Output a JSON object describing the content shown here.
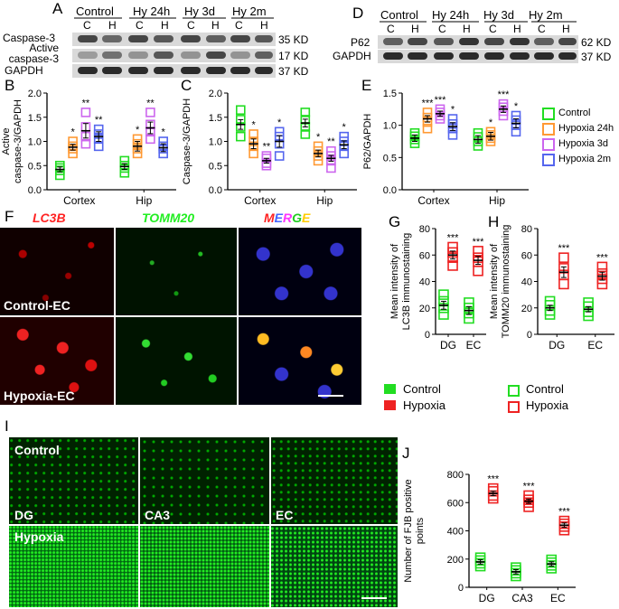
{
  "panels": {
    "A": "A",
    "B": "B",
    "C": "C",
    "D": "D",
    "E": "E",
    "F": "F",
    "G": "G",
    "H": "H",
    "I": "I",
    "J": "J"
  },
  "blotA": {
    "groups": [
      "Control",
      "Hy 24h",
      "Hy 3d",
      "Hy 2m"
    ],
    "lanes": [
      "C",
      "H",
      "C",
      "H",
      "C",
      "H",
      "C",
      "H"
    ],
    "rows": [
      {
        "name": "Caspase-3",
        "size": "35 KD"
      },
      {
        "name": "Active\ncaspase-3",
        "size": "17 KD"
      },
      {
        "name": "GAPDH",
        "size": "37 KD"
      }
    ]
  },
  "blotD": {
    "groups": [
      "Control",
      "Hy 24h",
      "Hy 3d",
      "Hy 2m"
    ],
    "lanes": [
      "C",
      "H",
      "C",
      "H",
      "C",
      "H",
      "C",
      "H"
    ],
    "rows": [
      {
        "name": "P62",
        "size": "62 KD"
      },
      {
        "name": "GAPDH",
        "size": "37 KD"
      }
    ]
  },
  "legend_top": {
    "items": [
      {
        "label": "Control",
        "color": "#22dd22"
      },
      {
        "label": "Hypoxia 24h",
        "color": "#ff9933"
      },
      {
        "label": "Hypoxia 3d",
        "color": "#cc66ee"
      },
      {
        "label": "Hypoxia 2m",
        "color": "#5566ee"
      }
    ]
  },
  "legend_G": {
    "items": [
      {
        "label": "Control",
        "color": "#22dd22"
      },
      {
        "label": "Hypoxia",
        "color": "#ee2222"
      }
    ]
  },
  "legend_H": {
    "items": [
      {
        "label": "Control",
        "color": "#22dd22"
      },
      {
        "label": "Hypoxia",
        "color": "#ee2222"
      }
    ]
  },
  "micF": {
    "cols": [
      {
        "text": "LC3B",
        "color": "#ff2222"
      },
      {
        "text": "TOMM20",
        "color": "#22ee22"
      },
      {
        "text": "MERGE",
        "color": "multi"
      }
    ],
    "rows": [
      "Control-EC",
      "Hypoxia-EC"
    ]
  },
  "micI": {
    "row_labels": [
      "Control",
      "Hypoxia"
    ],
    "col_labels": [
      "DG",
      "CA3",
      "EC"
    ]
  },
  "chart_data": [
    {
      "id": "B",
      "type": "scatter",
      "ylabel": "Active\ncaspase-3/GAPDH",
      "categories": [
        "Cortex",
        "Hip"
      ],
      "ylim": [
        0,
        2
      ],
      "yticks": [
        "0.0",
        "0.5",
        "1.0",
        "1.5",
        "2.0"
      ],
      "series": [
        {
          "name": "Control",
          "color": "#22dd22",
          "mean": [
            0.42,
            0.48
          ],
          "sem": [
            0.05,
            0.06
          ],
          "points": [
            [
              0.3,
              0.4,
              0.45,
              0.5
            ],
            [
              0.35,
              0.45,
              0.5,
              0.6
            ]
          ]
        },
        {
          "name": "Hypoxia 24h",
          "color": "#ff9933",
          "mean": [
            0.88,
            0.9
          ],
          "sem": [
            0.06,
            0.1
          ],
          "points": [
            [
              0.75,
              0.85,
              0.9,
              1.0
            ],
            [
              0.75,
              0.85,
              0.95,
              1.05
            ]
          ],
          "sig": [
            "*",
            "*"
          ]
        },
        {
          "name": "Hypoxia 3d",
          "color": "#cc66ee",
          "mean": [
            1.22,
            1.28
          ],
          "sem": [
            0.15,
            0.12
          ],
          "points": [
            [
              0.95,
              1.1,
              1.3,
              1.6
            ],
            [
              1.05,
              1.2,
              1.35,
              1.6
            ]
          ],
          "sig": [
            "**",
            "**"
          ]
        },
        {
          "name": "Hypoxia 2m",
          "color": "#5566ee",
          "mean": [
            1.1,
            0.87
          ],
          "sem": [
            0.1,
            0.08
          ],
          "points": [
            [
              0.9,
              1.05,
              1.15,
              1.25
            ],
            [
              0.75,
              0.85,
              0.9,
              1.0
            ]
          ],
          "sig": [
            "**",
            "*"
          ]
        }
      ]
    },
    {
      "id": "C",
      "type": "scatter",
      "ylabel": "Caspase-3/GAPDH",
      "categories": [
        "Cortex",
        "Hip"
      ],
      "ylim": [
        0,
        2
      ],
      "yticks": [
        "0.0",
        "0.5",
        "1.0",
        "1.5",
        "2.0"
      ],
      "series": [
        {
          "name": "Control",
          "color": "#22dd22",
          "mean": [
            1.35,
            1.38
          ],
          "sem": [
            0.1,
            0.08
          ],
          "points": [
            [
              1.1,
              1.3,
              1.45,
              1.65
            ],
            [
              1.15,
              1.3,
              1.45,
              1.6
            ]
          ]
        },
        {
          "name": "Hypoxia 24h",
          "color": "#ff9933",
          "mean": [
            0.95,
            0.75
          ],
          "sem": [
            0.1,
            0.07
          ],
          "points": [
            [
              0.75,
              0.9,
              1.0,
              1.15
            ],
            [
              0.6,
              0.7,
              0.8,
              0.9
            ]
          ],
          "sig": [
            "*",
            "*"
          ]
        },
        {
          "name": "Hypoxia 3d",
          "color": "#cc66ee",
          "mean": [
            0.6,
            0.65
          ],
          "sem": [
            0.05,
            0.06
          ],
          "points": [
            [
              0.5,
              0.55,
              0.65,
              0.7
            ],
            [
              0.45,
              0.6,
              0.7,
              0.8
            ]
          ],
          "sig": [
            "**",
            "**"
          ]
        },
        {
          "name": "Hypoxia 2m",
          "color": "#5566ee",
          "mean": [
            1.0,
            0.93
          ],
          "sem": [
            0.12,
            0.08
          ],
          "points": [
            [
              0.7,
              0.95,
              1.1,
              1.2
            ],
            [
              0.75,
              0.9,
              1.0,
              1.1
            ]
          ],
          "sig": [
            "*",
            "*"
          ]
        }
      ]
    },
    {
      "id": "E",
      "type": "scatter",
      "ylabel": "P62/GAPDH",
      "categories": [
        "Cortex",
        "Hip"
      ],
      "ylim": [
        0,
        1.5
      ],
      "yticks": [
        "0.0",
        "0.5",
        "1.0",
        "1.5"
      ],
      "series": [
        {
          "name": "Control",
          "color": "#22dd22",
          "mean": [
            0.8,
            0.78
          ],
          "sem": [
            0.05,
            0.06
          ],
          "points": [
            [
              0.72,
              0.78,
              0.83,
              0.88
            ],
            [
              0.68,
              0.75,
              0.82,
              0.88
            ]
          ]
        },
        {
          "name": "Hypoxia 24h",
          "color": "#ff9933",
          "mean": [
            1.1,
            0.83
          ],
          "sem": [
            0.05,
            0.06
          ],
          "points": [
            [
              0.95,
              1.05,
              1.12,
              1.2
            ],
            [
              0.75,
              0.8,
              0.85,
              0.9
            ]
          ],
          "sig": [
            "***",
            "*"
          ]
        },
        {
          "name": "Hypoxia 3d",
          "color": "#cc66ee",
          "mean": [
            1.18,
            1.25
          ],
          "sem": [
            0.04,
            0.05
          ],
          "points": [
            [
              1.1,
              1.15,
              1.2,
              1.25
            ],
            [
              1.15,
              1.22,
              1.28,
              1.33
            ]
          ],
          "sig": [
            "***",
            "***"
          ]
        },
        {
          "name": "Hypoxia 2m",
          "color": "#5566ee",
          "mean": [
            0.98,
            1.03
          ],
          "sem": [
            0.06,
            0.07
          ],
          "points": [
            [
              0.85,
              0.95,
              1.02,
              1.1
            ],
            [
              0.9,
              1.0,
              1.08,
              1.15
            ]
          ],
          "sig": [
            "*",
            "*"
          ]
        }
      ]
    },
    {
      "id": "G",
      "type": "scatter",
      "ylabel": "Mean intensity of\nLC3B immunostaining",
      "categories": [
        "DG",
        "EC"
      ],
      "ylim": [
        0,
        80
      ],
      "yticks": [
        "0",
        "20",
        "40",
        "60",
        "80"
      ],
      "series": [
        {
          "name": "Control",
          "color": "#22dd22",
          "mean": [
            22,
            18
          ],
          "sem": [
            3,
            3
          ],
          "points": [
            [
              15,
              20,
              25,
              30
            ],
            [
              12,
              16,
              20,
              24
            ]
          ]
        },
        {
          "name": "Hypoxia",
          "color": "#ee2222",
          "mean": [
            60,
            56
          ],
          "sem": [
            3,
            3
          ],
          "points": [
            [
              52,
              58,
              62,
              66
            ],
            [
              48,
              55,
              58,
              63
            ]
          ],
          "sig": [
            "***",
            "***"
          ]
        }
      ]
    },
    {
      "id": "H",
      "type": "scatter",
      "ylabel": "Mean intensity of\nTOMM20 immunostaining",
      "categories": [
        "DG",
        "EC"
      ],
      "ylim": [
        0,
        80
      ],
      "yticks": [
        "0",
        "20",
        "40",
        "60",
        "80"
      ],
      "series": [
        {
          "name": "Control",
          "color": "#22dd22",
          "mean": [
            20,
            19
          ],
          "sem": [
            2,
            2
          ],
          "points": [
            [
              15,
              18,
              22,
              25
            ],
            [
              14,
              17,
              21,
              24
            ]
          ]
        },
        {
          "name": "Hypoxia",
          "color": "#ee2222",
          "mean": [
            47,
            44
          ],
          "sem": [
            4,
            3
          ],
          "points": [
            [
              38,
              45,
              50,
              58
            ],
            [
              38,
              42,
              46,
              51
            ]
          ],
          "sig": [
            "***",
            "***"
          ]
        }
      ]
    },
    {
      "id": "J",
      "type": "scatter",
      "ylabel": "Number of FJB positive\npoints",
      "categories": [
        "DG",
        "CA3",
        "EC"
      ],
      "ylim": [
        0,
        800
      ],
      "yticks": [
        "0",
        "200",
        "400",
        "600",
        "800"
      ],
      "series": [
        {
          "name": "Control",
          "color": "#22dd22",
          "mean": [
            180,
            110,
            165
          ],
          "sem": [
            15,
            15,
            15
          ],
          "points": [
            [
              150,
              170,
              190,
              210
            ],
            [
              80,
              100,
              120,
              140
            ],
            [
              135,
              155,
              175,
              195
            ]
          ]
        },
        {
          "name": "Hypoxia",
          "color": "#ee2222",
          "mean": [
            665,
            610,
            440
          ],
          "sem": [
            15,
            15,
            15
          ],
          "points": [
            [
              630,
              650,
              680,
              700
            ],
            [
              570,
              600,
              620,
              650
            ],
            [
              405,
              430,
              450,
              470
            ]
          ],
          "sig": [
            "***",
            "***",
            "***"
          ]
        }
      ]
    }
  ]
}
